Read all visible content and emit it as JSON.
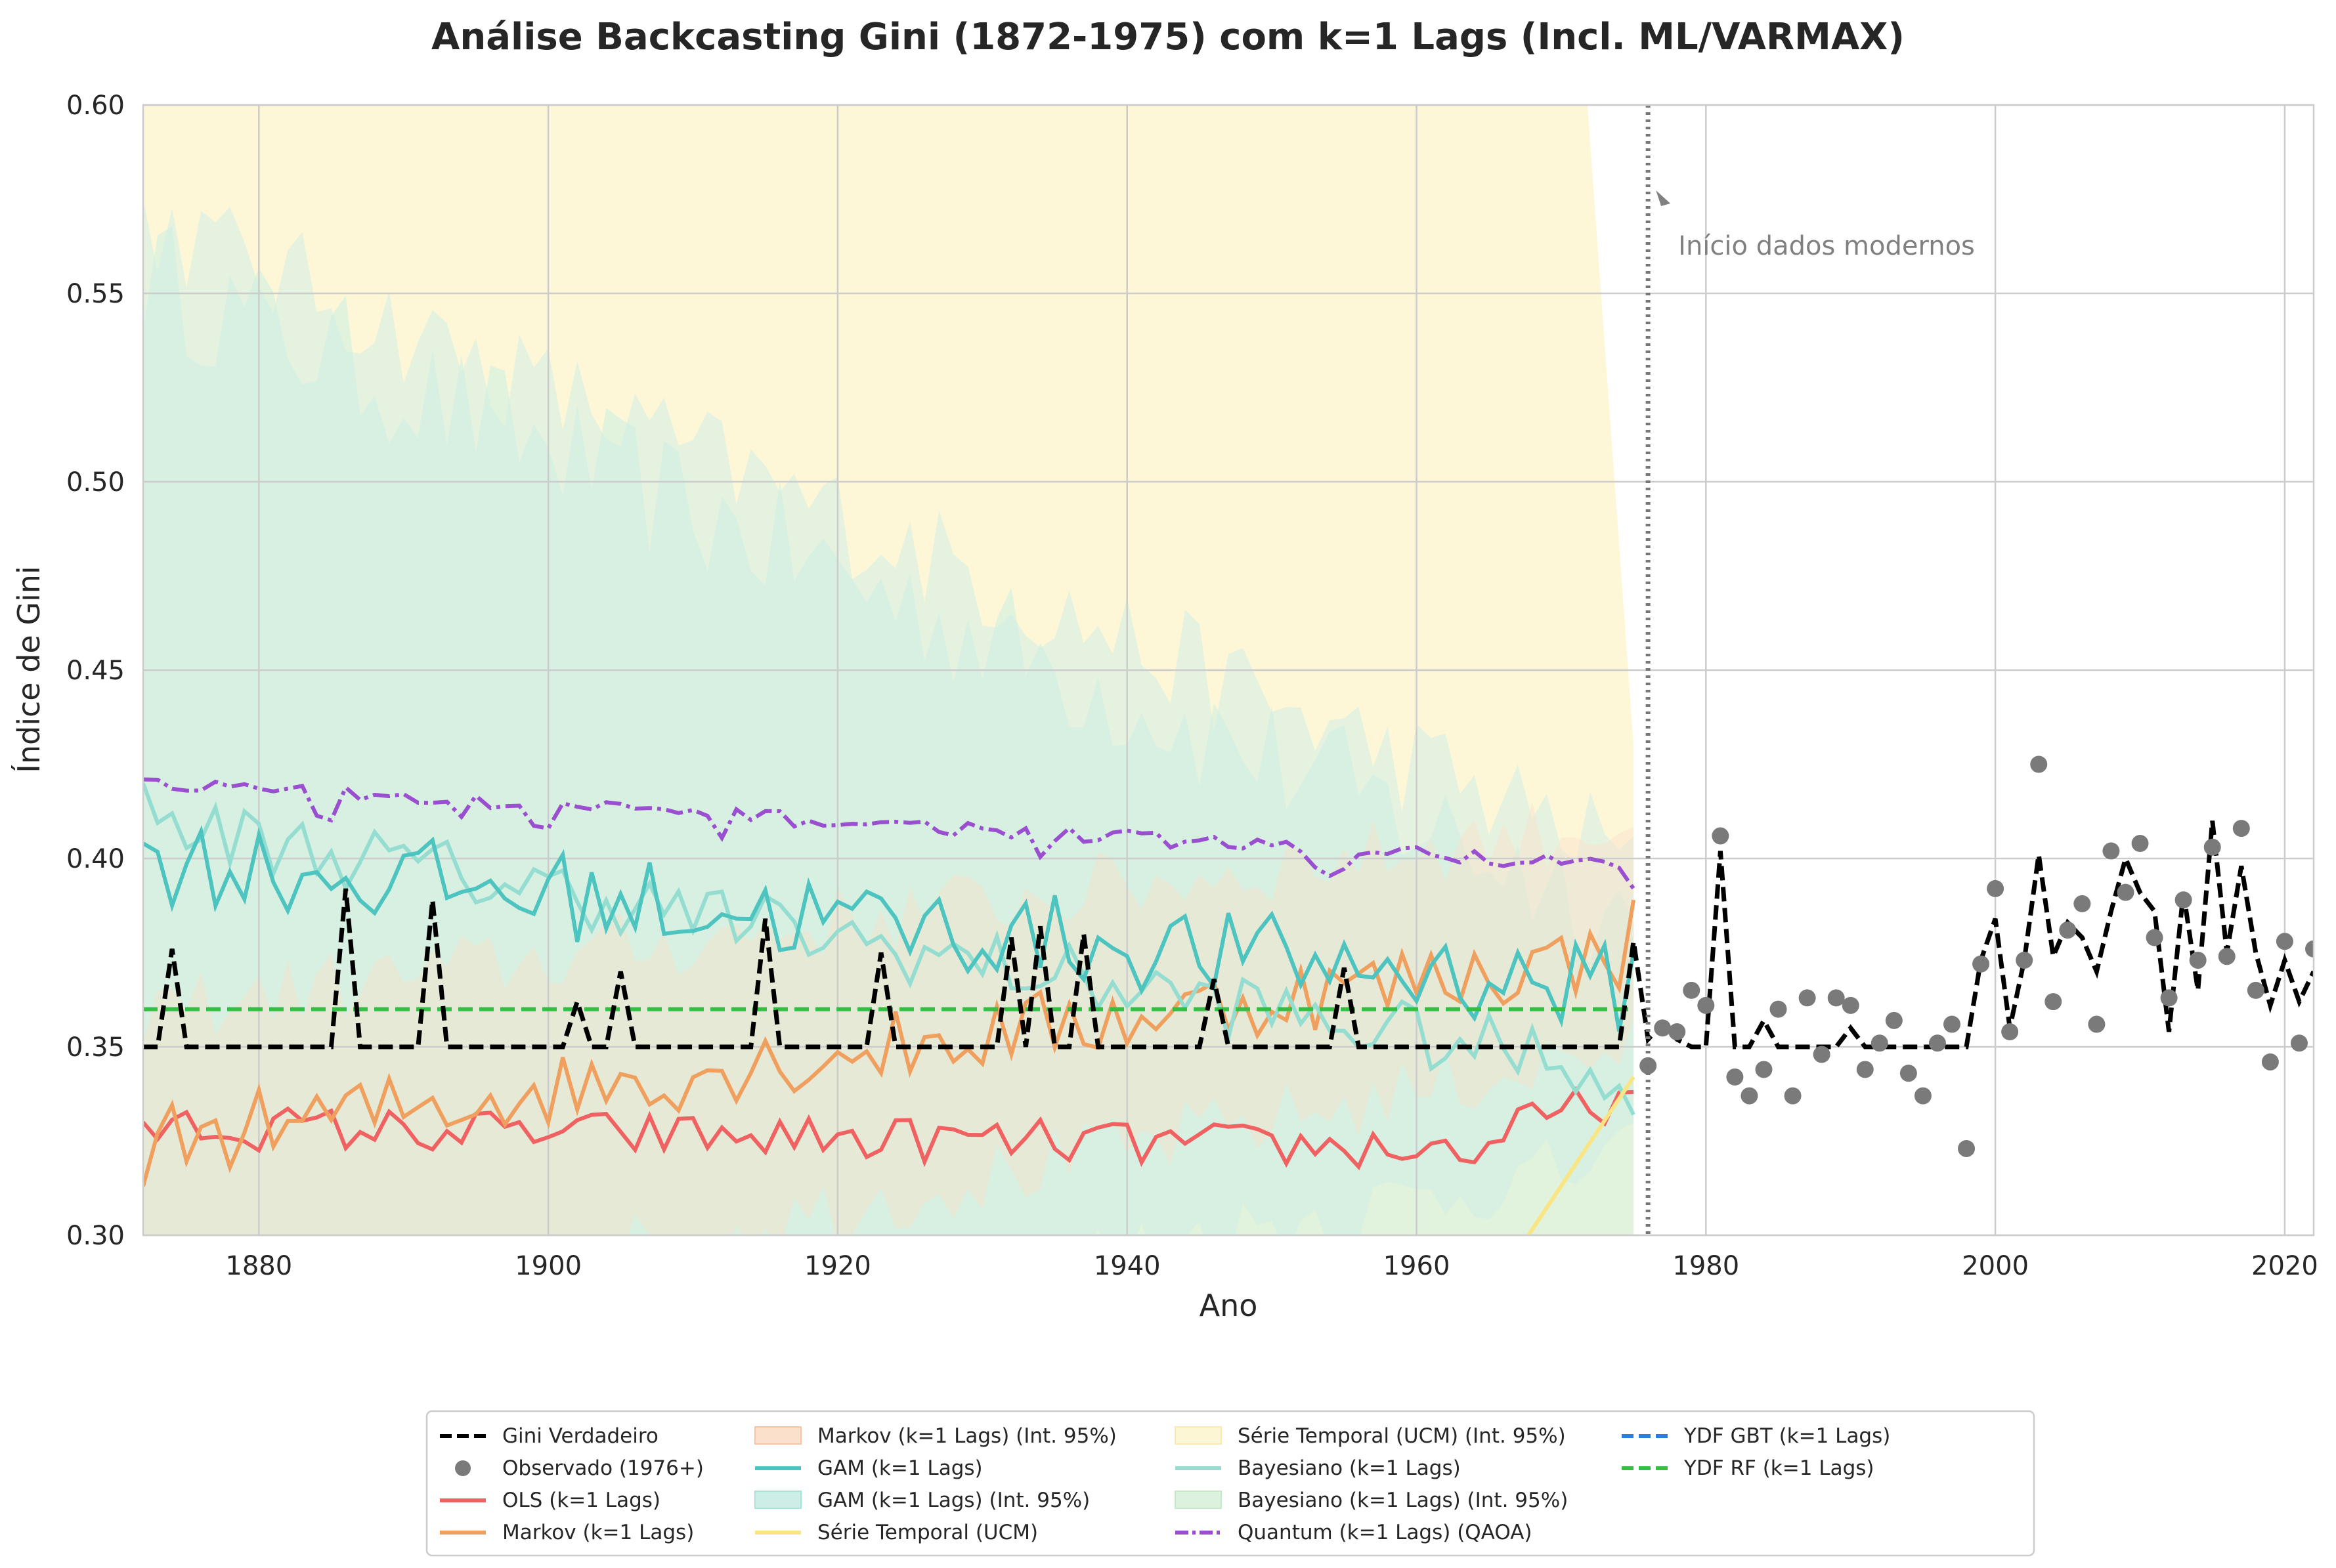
{
  "chart_data": {
    "type": "line",
    "title": "Análise Backcasting Gini (1872-1975) com k=1 Lags (Incl. ML/VARMAX)",
    "xlabel": "Ano",
    "ylabel": "Índice de Gini",
    "xlim": [
      1872,
      2022
    ],
    "ylim": [
      0.3,
      0.6
    ],
    "xticks": [
      1880,
      1900,
      1920,
      1940,
      1960,
      1980,
      2000,
      2020
    ],
    "yticks": [
      "0.30",
      "0.35",
      "0.40",
      "0.45",
      "0.50",
      "0.55",
      "0.60"
    ],
    "grid": true,
    "legend_position": "bottom-center",
    "annotation": {
      "text": "Início dados modernos",
      "x": 1976
    },
    "observed": {
      "name": "Observado (1976+)",
      "x": [
        1976,
        1977,
        1978,
        1979,
        1980,
        1981,
        1982,
        1983,
        1984,
        1985,
        1986,
        1987,
        1988,
        1989,
        1990,
        1991,
        1992,
        1993,
        1994,
        1995,
        1996,
        1997,
        1998,
        1999,
        2000,
        2001,
        2002,
        2003,
        2004,
        2005,
        2006,
        2007,
        2008,
        2009,
        2010,
        2011,
        2012,
        2013,
        2014,
        2015,
        2016,
        2017,
        2018,
        2019,
        2020,
        2021,
        2022
      ],
      "y": [
        0.345,
        0.355,
        0.354,
        0.365,
        0.361,
        0.406,
        0.342,
        0.337,
        0.344,
        0.36,
        0.337,
        0.363,
        0.348,
        0.363,
        0.361,
        0.344,
        0.351,
        0.357,
        0.343,
        0.337,
        0.351,
        0.356,
        0.323,
        0.372,
        0.392,
        0.354,
        0.373,
        0.425,
        0.362,
        0.381,
        0.388,
        0.356,
        0.402,
        0.391,
        0.404,
        0.379,
        0.363,
        0.389,
        0.373,
        0.403,
        0.374,
        0.408,
        0.365,
        0.346,
        0.378,
        0.351,
        0.376
      ]
    },
    "true_series": {
      "name": "Gini Verdadeiro",
      "spikes": [
        [
          1874,
          0.376
        ],
        [
          1886,
          0.392
        ],
        [
          1892,
          0.389
        ],
        [
          1902,
          0.362
        ],
        [
          1905,
          0.37
        ],
        [
          1915,
          0.384
        ],
        [
          1923,
          0.375
        ],
        [
          1932,
          0.379
        ],
        [
          1934,
          0.382
        ],
        [
          1937,
          0.38
        ],
        [
          1946,
          0.368
        ],
        [
          1955,
          0.371
        ],
        [
          1975,
          0.378
        ]
      ],
      "modern": [
        0.352,
        0.356,
        0.352,
        0.35,
        0.35,
        0.402,
        0.35,
        0.35,
        0.357,
        0.35,
        0.35,
        0.35,
        0.35,
        0.35,
        0.355,
        0.35,
        0.35,
        0.35,
        0.35,
        0.35,
        0.35,
        0.35,
        0.35,
        0.373,
        0.384,
        0.355,
        0.373,
        0.401,
        0.374,
        0.383,
        0.379,
        0.37,
        0.386,
        0.4,
        0.391,
        0.386,
        0.354,
        0.391,
        0.365,
        0.41,
        0.375,
        0.398,
        0.375,
        0.361,
        0.373,
        0.362,
        0.37
      ]
    },
    "series": [
      {
        "name": "OLS (k=1 Lags)",
        "color": "#f06262",
        "start": 0.33,
        "end": 0.338
      },
      {
        "name": "Markov (k=1 Lags)",
        "color": "#f0a05e",
        "start": 0.313,
        "end": 0.389
      },
      {
        "name": "GAM (k=1 Lags)",
        "color": "#4dc4bf",
        "start": 0.404,
        "end": 0.375
      },
      {
        "name": "Série Temporal (UCM)",
        "color": "#fae584",
        "start": 0.3,
        "end": 0.342
      },
      {
        "name": "Bayesiano (k=1 Lags)",
        "color": "#94ddd0",
        "start": 0.42,
        "end": 0.332
      },
      {
        "name": "Quantum (k=1 Lags) (QAOA)",
        "color": "#9a4fd0",
        "start": 0.421,
        "end": 0.392
      },
      {
        "name": "YDF GBT (k=1 Lags)",
        "color": "#2a7fde",
        "value": 0.36
      },
      {
        "name": "YDF RF (k=1 Lags)",
        "color": "#33c040",
        "value": 0.36
      }
    ],
    "intervals": [
      {
        "name": "Markov (k=1 Lags) (Int. 95%)",
        "color": "#fbe0cc"
      },
      {
        "name": "GAM (k=1 Lags) (Int. 95%)",
        "color": "#cdeee6"
      },
      {
        "name": "Série Temporal (UCM) (Int. 95%)",
        "color": "#fdf6d4"
      },
      {
        "name": "Bayesiano (k=1 Lags) (Int. 95%)",
        "color": "#dcf2de"
      }
    ]
  },
  "legend": [
    "Gini Verdadeiro",
    "Observado (1976+)",
    "OLS (k=1 Lags)",
    "Markov (k=1 Lags)",
    "Markov (k=1 Lags) (Int. 95%)",
    "GAM (k=1 Lags)",
    "GAM (k=1 Lags) (Int. 95%)",
    "Série Temporal (UCM)",
    "Série Temporal (UCM) (Int. 95%)",
    "Bayesiano (k=1 Lags)",
    "Bayesiano (k=1 Lags) (Int. 95%)",
    "Quantum (k=1 Lags) (QAOA)",
    "YDF GBT (k=1 Lags)",
    "YDF RF (k=1 Lags)"
  ]
}
